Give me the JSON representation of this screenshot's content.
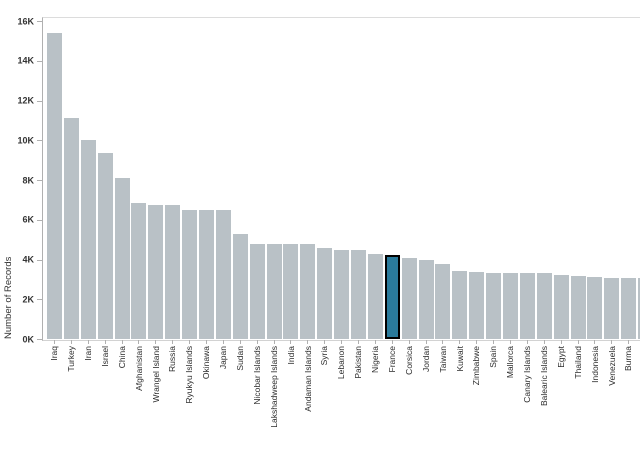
{
  "chart_data": {
    "type": "bar",
    "title": "",
    "xlabel": "",
    "ylabel": "Number of Records",
    "ylim": [
      0,
      16000
    ],
    "yticks": [
      0,
      2000,
      4000,
      6000,
      8000,
      10000,
      12000,
      14000,
      16000
    ],
    "ytick_labels": [
      "0K",
      "2K",
      "4K",
      "6K",
      "8K",
      "10K",
      "12K",
      "14K",
      "16K"
    ],
    "grid": false,
    "legend": "none",
    "sort_order": "descending",
    "categories": [
      "Iraq",
      "Turkey",
      "Iran",
      "Israel",
      "China",
      "Afghanistan",
      "Wrangel Island",
      "Russia",
      "Ryukyu Islands",
      "Okinawa",
      "Japan",
      "Sudan",
      "Nicobar Islands",
      "Lakshadweep Islands",
      "India",
      "Andaman Islands",
      "Syria",
      "Lebanon",
      "Pakistan",
      "Nigeria",
      "France",
      "Corsica",
      "Jordan",
      "Taiwan",
      "Kuwait",
      "Zimbabwe",
      "Spain",
      "Mallorca",
      "Canary Islands",
      "Balearic Islands",
      "Egypt",
      "Thailand",
      "Indonesia",
      "Venezuela",
      "Burma"
    ],
    "values": [
      15400,
      11100,
      10000,
      9350,
      8100,
      6850,
      6750,
      6750,
      6500,
      6500,
      6500,
      5300,
      4800,
      4800,
      4800,
      4800,
      4600,
      4500,
      4500,
      4300,
      4250,
      4100,
      3950,
      3750,
      3400,
      3350,
      3300,
      3300,
      3300,
      3300,
      3200,
      3150,
      3100,
      3050,
      3050
    ],
    "highlighted_category": "France",
    "highlighted_value": 4250,
    "clipped_partial_bar_value": 3050,
    "colors": {
      "bar": "#b9c1c6",
      "highlight_fill": "#2a7a9b",
      "highlight_border": "#000000",
      "axis_line": "#b0b0b0",
      "frame_line": "#dcdcdc",
      "tick_label": "#333333"
    }
  }
}
